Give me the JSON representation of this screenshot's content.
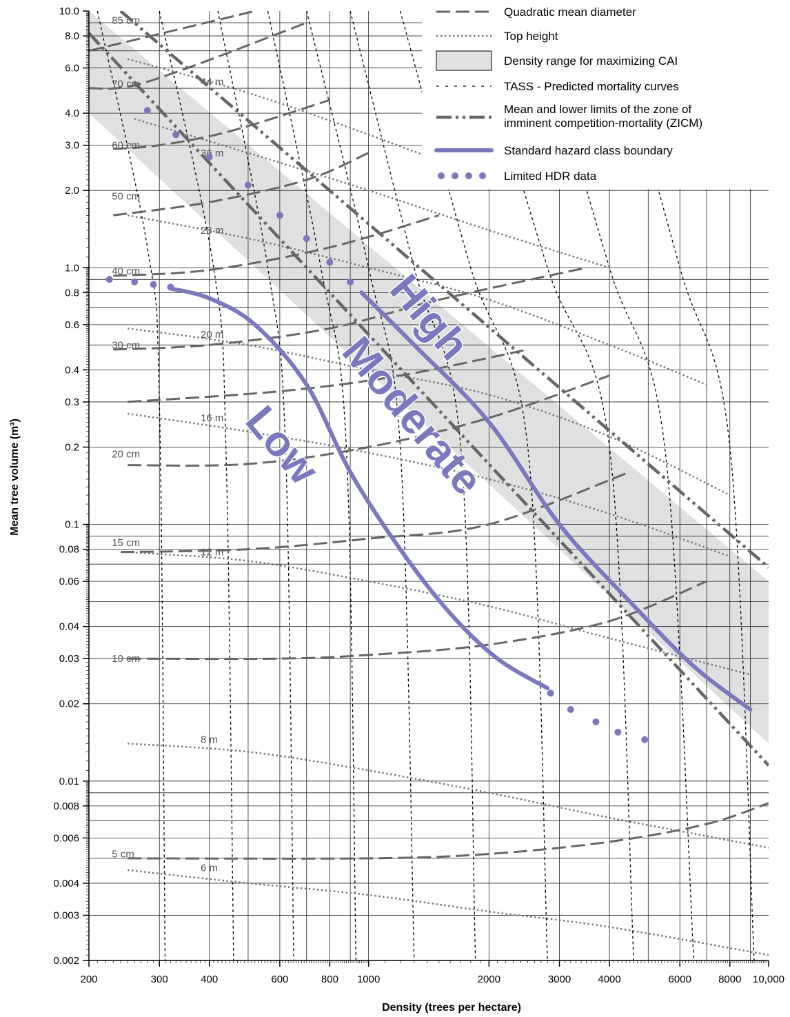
{
  "chart_data": {
    "type": "line",
    "xlabel": "Density (trees per hectare)",
    "ylabel": "Mean tree volume (m³)",
    "x_scale": "log",
    "y_scale": "log",
    "xlim": [
      200,
      10000
    ],
    "ylim": [
      0.002,
      10
    ],
    "x_tick_labels": [
      {
        "value": 200,
        "label": "200"
      },
      {
        "value": 300,
        "label": "300"
      },
      {
        "value": 400,
        "label": "400"
      },
      {
        "value": 600,
        "label": "600"
      },
      {
        "value": 800,
        "label": "800"
      },
      {
        "value": 1000,
        "label": "1000"
      },
      {
        "value": 2000,
        "label": "2000"
      },
      {
        "value": 3000,
        "label": "3000"
      },
      {
        "value": 4000,
        "label": "4000"
      },
      {
        "value": 6000,
        "label": "6000"
      },
      {
        "value": 8000,
        "label": "8000"
      },
      {
        "value": 10000,
        "label": "10,000"
      }
    ],
    "y_tick_labels": [
      {
        "value": 10,
        "label": "10.0"
      },
      {
        "value": 8,
        "label": "8.0"
      },
      {
        "value": 6,
        "label": "6.0"
      },
      {
        "value": 4,
        "label": "4.0"
      },
      {
        "value": 3,
        "label": "3.0"
      },
      {
        "value": 2,
        "label": "2.0"
      },
      {
        "value": 1,
        "label": "1.0"
      },
      {
        "value": 0.8,
        "label": "0.8"
      },
      {
        "value": 0.6,
        "label": "0.6"
      },
      {
        "value": 0.4,
        "label": "0.4"
      },
      {
        "value": 0.3,
        "label": "0.3"
      },
      {
        "value": 0.2,
        "label": "0.2"
      },
      {
        "value": 0.1,
        "label": "0.1"
      },
      {
        "value": 0.08,
        "label": "0.08"
      },
      {
        "value": 0.06,
        "label": "0.06"
      },
      {
        "value": 0.04,
        "label": "0.04"
      },
      {
        "value": 0.03,
        "label": "0.03"
      },
      {
        "value": 0.02,
        "label": "0.02"
      },
      {
        "value": 0.01,
        "label": "0.01"
      },
      {
        "value": 0.008,
        "label": "0.008"
      },
      {
        "value": 0.006,
        "label": "0.006"
      },
      {
        "value": 0.004,
        "label": "0.004"
      },
      {
        "value": 0.003,
        "label": "0.003"
      },
      {
        "value": 0.002,
        "label": "0.002"
      }
    ],
    "grid": true,
    "legend": {
      "placement": "top-right",
      "entries": [
        {
          "key": "qmd",
          "label": "Quadratic mean diameter"
        },
        {
          "key": "top_height",
          "label": "Top height"
        },
        {
          "key": "cai_range",
          "label": "Density range for maximizing CAI"
        },
        {
          "key": "tass",
          "label": "TASS - Predicted mortality curves"
        },
        {
          "key": "zicm",
          "label": "Mean and lower limits of the zone of",
          "label2": "imminent competition-mortality (ZICM)"
        },
        {
          "key": "hazard",
          "label": "Standard hazard class boundary"
        },
        {
          "key": "hdr",
          "label": "Limited HDR data"
        }
      ]
    },
    "zone_labels": [
      {
        "text": "High",
        "x": 1400,
        "y": 0.63,
        "angle": 50
      },
      {
        "text": "Moderate",
        "x": 1270,
        "y": 0.26,
        "angle": 50
      },
      {
        "text": "Low",
        "x": 600,
        "y": 0.2,
        "angle": 50
      }
    ],
    "cai_band": {
      "upper": [
        [
          200,
          10
        ],
        [
          10000,
          0.06
        ]
      ],
      "lower": [
        [
          200,
          4
        ],
        [
          10000,
          0.014
        ]
      ]
    },
    "zicm_lines": [
      {
        "name": "mean",
        "points": [
          [
            240,
            10
          ],
          [
            10000,
            0.068
          ]
        ]
      },
      {
        "name": "lower",
        "points": [
          [
            200,
            8.2
          ],
          [
            10000,
            0.0115
          ]
        ]
      }
    ],
    "qmd_series": [
      {
        "label": "85 cm",
        "label_at": [
          230,
          9.2
        ],
        "points": [
          [
            200,
            7
          ],
          [
            520,
            10
          ]
        ]
      },
      {
        "label": "70 cm",
        "label_at": [
          230,
          5.2
        ],
        "points": [
          [
            200,
            5
          ],
          [
            280,
            5.3
          ],
          [
            700,
            9
          ]
        ]
      },
      {
        "label": "60 cm",
        "label_at": [
          230,
          3.0
        ],
        "points": [
          [
            230,
            2.9
          ],
          [
            300,
            3.0
          ],
          [
            450,
            3.4
          ],
          [
            800,
            4.5
          ]
        ]
      },
      {
        "label": "50 cm",
        "label_at": [
          230,
          1.9
        ],
        "points": [
          [
            230,
            1.6
          ],
          [
            400,
            1.8
          ],
          [
            700,
            2.2
          ],
          [
            1000,
            2.8
          ]
        ]
      },
      {
        "label": "40 cm",
        "label_at": [
          230,
          0.97
        ],
        "points": [
          [
            230,
            0.93
          ],
          [
            400,
            0.98
          ],
          [
            800,
            1.2
          ],
          [
            1500,
            1.6
          ]
        ]
      },
      {
        "label": "30 cm",
        "label_at": [
          230,
          0.5
        ],
        "points": [
          [
            230,
            0.48
          ],
          [
            400,
            0.5
          ],
          [
            800,
            0.58
          ],
          [
            1500,
            0.75
          ],
          [
            3500,
            1.0
          ]
        ]
      },
      {
        "label": "20 cm",
        "label_at": [
          230,
          0.188
        ],
        "points": [
          [
            250,
            0.3
          ],
          [
            600,
            0.33
          ],
          [
            1200,
            0.38
          ],
          [
            2500,
            0.48
          ]
        ]
      },
      {
        "label": "",
        "points": [
          [
            250,
            0.17
          ],
          [
            500,
            0.172
          ],
          [
            1000,
            0.2
          ],
          [
            2000,
            0.26
          ],
          [
            4000,
            0.38
          ]
        ]
      },
      {
        "label": "15 cm",
        "label_at": [
          230,
          0.085
        ],
        "points": [
          [
            240,
            0.078
          ],
          [
            500,
            0.08
          ],
          [
            1000,
            0.088
          ],
          [
            2000,
            0.1
          ],
          [
            4500,
            0.16
          ]
        ]
      },
      {
        "label": "10 cm",
        "label_at": [
          230,
          0.03
        ],
        "points": [
          [
            250,
            0.03
          ],
          [
            600,
            0.03
          ],
          [
            1000,
            0.031
          ],
          [
            2000,
            0.034
          ],
          [
            4000,
            0.042
          ],
          [
            7000,
            0.06
          ]
        ]
      },
      {
        "label": "5 cm",
        "label_at": [
          230,
          0.0052
        ],
        "points": [
          [
            250,
            0.005
          ],
          [
            1000,
            0.005
          ],
          [
            2000,
            0.0052
          ],
          [
            4000,
            0.0058
          ],
          [
            7000,
            0.0068
          ],
          [
            10000,
            0.0082
          ]
        ]
      }
    ],
    "top_height_series": [
      {
        "label": "44 m",
        "label_at": [
          420,
          5.3
        ],
        "points": [
          [
            250,
            6.5
          ],
          [
            500,
            4.8
          ],
          [
            1000,
            3.3
          ],
          [
            2000,
            2.2
          ]
        ]
      },
      {
        "label": "36 m",
        "label_at": [
          420,
          2.8
        ],
        "points": [
          [
            260,
            3.8
          ],
          [
            500,
            2.8
          ],
          [
            1000,
            2.0
          ],
          [
            2000,
            1.4
          ],
          [
            4000,
            1.0
          ]
        ]
      },
      {
        "label": "28 m",
        "label_at": [
          420,
          1.4
        ],
        "points": [
          [
            250,
            1.6
          ],
          [
            500,
            1.3
          ],
          [
            1000,
            1.0
          ],
          [
            2000,
            0.75
          ],
          [
            4000,
            0.5
          ],
          [
            7000,
            0.35
          ]
        ]
      },
      {
        "label": "20 m",
        "label_at": [
          420,
          0.55
        ],
        "points": [
          [
            250,
            0.58
          ],
          [
            500,
            0.5
          ],
          [
            1000,
            0.4
          ],
          [
            2000,
            0.32
          ],
          [
            4000,
            0.22
          ],
          [
            8000,
            0.13
          ]
        ]
      },
      {
        "label": "16 m",
        "label_at": [
          420,
          0.26
        ],
        "points": [
          [
            250,
            0.27
          ],
          [
            500,
            0.23
          ],
          [
            1000,
            0.19
          ],
          [
            2000,
            0.15
          ],
          [
            4000,
            0.11
          ],
          [
            8000,
            0.075
          ]
        ]
      },
      {
        "label": "12 m",
        "label_at": [
          420,
          0.078
        ],
        "points": [
          [
            250,
            0.078
          ],
          [
            500,
            0.072
          ],
          [
            1000,
            0.06
          ],
          [
            2000,
            0.048
          ],
          [
            4000,
            0.036
          ],
          [
            9000,
            0.026
          ]
        ]
      },
      {
        "label": "8 m",
        "label_at": [
          420,
          0.0145
        ],
        "points": [
          [
            250,
            0.014
          ],
          [
            500,
            0.013
          ],
          [
            1000,
            0.011
          ],
          [
            2000,
            0.009
          ],
          [
            4000,
            0.0072
          ],
          [
            10000,
            0.0055
          ]
        ]
      },
      {
        "label": "6 m",
        "label_at": [
          420,
          0.0046
        ],
        "points": [
          [
            250,
            0.0045
          ],
          [
            500,
            0.004
          ],
          [
            1000,
            0.0036
          ],
          [
            2000,
            0.0031
          ],
          [
            4000,
            0.0027
          ],
          [
            10000,
            0.0021
          ]
        ]
      }
    ],
    "tass_series": [
      {
        "points": [
          [
            210,
            10
          ],
          [
            280,
            1.2
          ],
          [
            300,
            0.3
          ],
          [
            310,
            0.002
          ]
        ]
      },
      {
        "points": [
          [
            300,
            10
          ],
          [
            410,
            1.0
          ],
          [
            440,
            0.2
          ],
          [
            460,
            0.002
          ]
        ]
      },
      {
        "points": [
          [
            420,
            10
          ],
          [
            560,
            1.0
          ],
          [
            620,
            0.2
          ],
          [
            650,
            0.002
          ]
        ]
      },
      {
        "points": [
          [
            560,
            10
          ],
          [
            760,
            1.0
          ],
          [
            880,
            0.2
          ],
          [
            930,
            0.002
          ]
        ]
      },
      {
        "points": [
          [
            700,
            10
          ],
          [
            1000,
            1.0
          ],
          [
            1200,
            0.2
          ],
          [
            1300,
            0.002
          ]
        ]
      },
      {
        "points": [
          [
            900,
            10
          ],
          [
            1300,
            1.0
          ],
          [
            1700,
            0.2
          ],
          [
            1850,
            0.002
          ]
        ]
      },
      {
        "points": [
          [
            1200,
            10
          ],
          [
            1800,
            1.0
          ],
          [
            2500,
            0.2
          ],
          [
            2800,
            0.002
          ]
        ]
      },
      {
        "points": [
          [
            1800,
            10
          ],
          [
            2800,
            1.0
          ],
          [
            4000,
            0.2
          ],
          [
            4600,
            0.002
          ]
        ]
      },
      {
        "points": [
          [
            2600,
            10
          ],
          [
            4000,
            1.0
          ],
          [
            5500,
            0.2
          ],
          [
            6500,
            0.002
          ]
        ]
      },
      {
        "points": [
          [
            4000,
            10
          ],
          [
            6000,
            1.0
          ],
          [
            8000,
            0.2
          ],
          [
            9200,
            0.002
          ]
        ]
      }
    ],
    "hazard_series": [
      {
        "points": [
          [
            320,
            0.83
          ],
          [
            400,
            0.76
          ],
          [
            520,
            0.6
          ],
          [
            700,
            0.35
          ],
          [
            900,
            0.16
          ],
          [
            1200,
            0.08
          ],
          [
            1600,
            0.045
          ],
          [
            2100,
            0.03
          ],
          [
            2800,
            0.023
          ]
        ]
      },
      {
        "points": [
          [
            960,
            0.8
          ],
          [
            1300,
            0.5
          ],
          [
            2000,
            0.25
          ],
          [
            3000,
            0.1
          ],
          [
            4500,
            0.05
          ],
          [
            6500,
            0.028
          ],
          [
            9000,
            0.019
          ]
        ]
      }
    ],
    "hdr_series": [
      {
        "points": [
          [
            225,
            0.9
          ],
          [
            260,
            0.88
          ],
          [
            290,
            0.86
          ],
          [
            320,
            0.84
          ]
        ]
      },
      {
        "points": [
          [
            280,
            4.1
          ],
          [
            330,
            3.3
          ],
          [
            400,
            2.7
          ],
          [
            500,
            2.1
          ],
          [
            600,
            1.6
          ],
          [
            700,
            1.3
          ],
          [
            800,
            1.05
          ],
          [
            900,
            0.88
          ]
        ]
      },
      {
        "points": [
          [
            2850,
            0.022
          ],
          [
            3200,
            0.019
          ],
          [
            3700,
            0.017
          ],
          [
            4200,
            0.0155
          ],
          [
            4900,
            0.0145
          ]
        ]
      }
    ]
  }
}
